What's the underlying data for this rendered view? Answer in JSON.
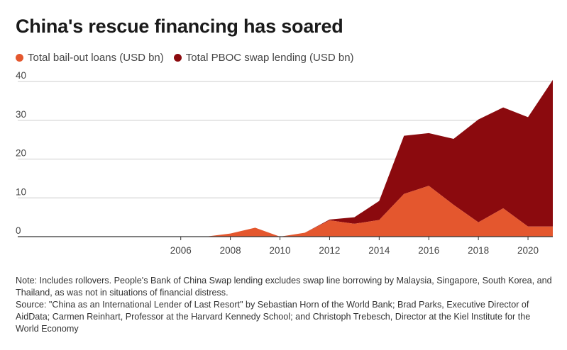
{
  "title": "China's rescue financing has soared",
  "note": "Note: Includes rollovers. People's Bank of China Swap lending excludes swap line borrowing by Malaysia, Singapore, South Korea, and Thailand, as was not in situations of financial distress.",
  "source": "Source: \"China as an International Lender of Last Resort\" by Sebastian Horn of the World Bank; Brad Parks, Executive Director of AidData; Carmen Reinhart, Professor at the Harvard Kennedy School; and Christoph Trebesch, Director at the Kiel Institute for the World Economy",
  "colors": {
    "bailout": "#e4572e",
    "swap": "#8b0a0e",
    "axis": "#333333",
    "grid": "#cccccc"
  },
  "chart_data": {
    "type": "area",
    "stacked": true,
    "title": "China's rescue financing has soared",
    "x": [
      2000,
      2001,
      2002,
      2003,
      2004,
      2005,
      2006,
      2007,
      2008,
      2009,
      2010,
      2011,
      2012,
      2013,
      2014,
      2015,
      2016,
      2017,
      2018,
      2019,
      2020,
      2021
    ],
    "xticks": [
      2006,
      2008,
      2010,
      2012,
      2014,
      2016,
      2018,
      2020
    ],
    "yticks": [
      0,
      10,
      20,
      30,
      40
    ],
    "ylim": [
      0,
      40
    ],
    "xlabel": "",
    "ylabel": "",
    "legend_position": "top-left",
    "series": [
      {
        "name": "Total bail-out loans (USD bn)",
        "color": "#e4572e",
        "values": [
          0,
          0,
          0,
          0,
          0,
          0,
          0,
          0,
          0.8,
          2.3,
          0,
          1.0,
          4.2,
          3.3,
          4.3,
          11.0,
          13.1,
          8.2,
          3.7,
          7.3,
          2.6,
          2.6
        ]
      },
      {
        "name": "Total PBOC swap lending (USD bn)",
        "color": "#8b0a0e",
        "values": [
          0,
          0,
          0,
          0,
          0,
          0,
          0,
          0,
          0,
          0,
          0,
          0,
          0.2,
          1.7,
          4.9,
          15.0,
          13.6,
          17.0,
          26.5,
          26.0,
          28.2,
          37.8
        ]
      }
    ]
  }
}
